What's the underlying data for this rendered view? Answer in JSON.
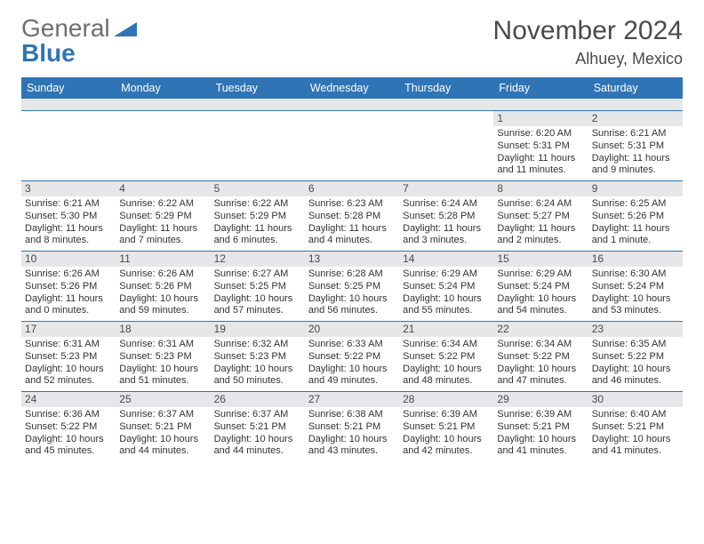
{
  "logo": {
    "word1": "General",
    "word2": "Blue",
    "accent": "#2f74b5"
  },
  "title": "November 2024",
  "location": "Alhuey, Mexico",
  "colors": {
    "header_bg": "#2f74b5",
    "header_text": "#ffffff",
    "daynum_bg": "#e6e7e9",
    "row_border": "#2f74b5",
    "text": "#333333",
    "title_color": "#4a4a4a"
  },
  "fonts": {
    "title_size": 30,
    "location_size": 18,
    "header_size": 12.5,
    "body_size": 11
  },
  "day_headers": [
    "Sunday",
    "Monday",
    "Tuesday",
    "Wednesday",
    "Thursday",
    "Friday",
    "Saturday"
  ],
  "weeks": [
    [
      {
        "n": "",
        "sr": "",
        "ss": "",
        "dl": [
          "",
          ""
        ]
      },
      {
        "n": "",
        "sr": "",
        "ss": "",
        "dl": [
          "",
          ""
        ]
      },
      {
        "n": "",
        "sr": "",
        "ss": "",
        "dl": [
          "",
          ""
        ]
      },
      {
        "n": "",
        "sr": "",
        "ss": "",
        "dl": [
          "",
          ""
        ]
      },
      {
        "n": "",
        "sr": "",
        "ss": "",
        "dl": [
          "",
          ""
        ]
      },
      {
        "n": "1",
        "sr": "Sunrise: 6:20 AM",
        "ss": "Sunset: 5:31 PM",
        "dl": [
          "Daylight: 11 hours",
          "and 11 minutes."
        ]
      },
      {
        "n": "2",
        "sr": "Sunrise: 6:21 AM",
        "ss": "Sunset: 5:31 PM",
        "dl": [
          "Daylight: 11 hours",
          "and 9 minutes."
        ]
      }
    ],
    [
      {
        "n": "3",
        "sr": "Sunrise: 6:21 AM",
        "ss": "Sunset: 5:30 PM",
        "dl": [
          "Daylight: 11 hours",
          "and 8 minutes."
        ]
      },
      {
        "n": "4",
        "sr": "Sunrise: 6:22 AM",
        "ss": "Sunset: 5:29 PM",
        "dl": [
          "Daylight: 11 hours",
          "and 7 minutes."
        ]
      },
      {
        "n": "5",
        "sr": "Sunrise: 6:22 AM",
        "ss": "Sunset: 5:29 PM",
        "dl": [
          "Daylight: 11 hours",
          "and 6 minutes."
        ]
      },
      {
        "n": "6",
        "sr": "Sunrise: 6:23 AM",
        "ss": "Sunset: 5:28 PM",
        "dl": [
          "Daylight: 11 hours",
          "and 4 minutes."
        ]
      },
      {
        "n": "7",
        "sr": "Sunrise: 6:24 AM",
        "ss": "Sunset: 5:28 PM",
        "dl": [
          "Daylight: 11 hours",
          "and 3 minutes."
        ]
      },
      {
        "n": "8",
        "sr": "Sunrise: 6:24 AM",
        "ss": "Sunset: 5:27 PM",
        "dl": [
          "Daylight: 11 hours",
          "and 2 minutes."
        ]
      },
      {
        "n": "9",
        "sr": "Sunrise: 6:25 AM",
        "ss": "Sunset: 5:26 PM",
        "dl": [
          "Daylight: 11 hours",
          "and 1 minute."
        ]
      }
    ],
    [
      {
        "n": "10",
        "sr": "Sunrise: 6:26 AM",
        "ss": "Sunset: 5:26 PM",
        "dl": [
          "Daylight: 11 hours",
          "and 0 minutes."
        ]
      },
      {
        "n": "11",
        "sr": "Sunrise: 6:26 AM",
        "ss": "Sunset: 5:26 PM",
        "dl": [
          "Daylight: 10 hours",
          "and 59 minutes."
        ]
      },
      {
        "n": "12",
        "sr": "Sunrise: 6:27 AM",
        "ss": "Sunset: 5:25 PM",
        "dl": [
          "Daylight: 10 hours",
          "and 57 minutes."
        ]
      },
      {
        "n": "13",
        "sr": "Sunrise: 6:28 AM",
        "ss": "Sunset: 5:25 PM",
        "dl": [
          "Daylight: 10 hours",
          "and 56 minutes."
        ]
      },
      {
        "n": "14",
        "sr": "Sunrise: 6:29 AM",
        "ss": "Sunset: 5:24 PM",
        "dl": [
          "Daylight: 10 hours",
          "and 55 minutes."
        ]
      },
      {
        "n": "15",
        "sr": "Sunrise: 6:29 AM",
        "ss": "Sunset: 5:24 PM",
        "dl": [
          "Daylight: 10 hours",
          "and 54 minutes."
        ]
      },
      {
        "n": "16",
        "sr": "Sunrise: 6:30 AM",
        "ss": "Sunset: 5:24 PM",
        "dl": [
          "Daylight: 10 hours",
          "and 53 minutes."
        ]
      }
    ],
    [
      {
        "n": "17",
        "sr": "Sunrise: 6:31 AM",
        "ss": "Sunset: 5:23 PM",
        "dl": [
          "Daylight: 10 hours",
          "and 52 minutes."
        ]
      },
      {
        "n": "18",
        "sr": "Sunrise: 6:31 AM",
        "ss": "Sunset: 5:23 PM",
        "dl": [
          "Daylight: 10 hours",
          "and 51 minutes."
        ]
      },
      {
        "n": "19",
        "sr": "Sunrise: 6:32 AM",
        "ss": "Sunset: 5:23 PM",
        "dl": [
          "Daylight: 10 hours",
          "and 50 minutes."
        ]
      },
      {
        "n": "20",
        "sr": "Sunrise: 6:33 AM",
        "ss": "Sunset: 5:22 PM",
        "dl": [
          "Daylight: 10 hours",
          "and 49 minutes."
        ]
      },
      {
        "n": "21",
        "sr": "Sunrise: 6:34 AM",
        "ss": "Sunset: 5:22 PM",
        "dl": [
          "Daylight: 10 hours",
          "and 48 minutes."
        ]
      },
      {
        "n": "22",
        "sr": "Sunrise: 6:34 AM",
        "ss": "Sunset: 5:22 PM",
        "dl": [
          "Daylight: 10 hours",
          "and 47 minutes."
        ]
      },
      {
        "n": "23",
        "sr": "Sunrise: 6:35 AM",
        "ss": "Sunset: 5:22 PM",
        "dl": [
          "Daylight: 10 hours",
          "and 46 minutes."
        ]
      }
    ],
    [
      {
        "n": "24",
        "sr": "Sunrise: 6:36 AM",
        "ss": "Sunset: 5:22 PM",
        "dl": [
          "Daylight: 10 hours",
          "and 45 minutes."
        ]
      },
      {
        "n": "25",
        "sr": "Sunrise: 6:37 AM",
        "ss": "Sunset: 5:21 PM",
        "dl": [
          "Daylight: 10 hours",
          "and 44 minutes."
        ]
      },
      {
        "n": "26",
        "sr": "Sunrise: 6:37 AM",
        "ss": "Sunset: 5:21 PM",
        "dl": [
          "Daylight: 10 hours",
          "and 44 minutes."
        ]
      },
      {
        "n": "27",
        "sr": "Sunrise: 6:38 AM",
        "ss": "Sunset: 5:21 PM",
        "dl": [
          "Daylight: 10 hours",
          "and 43 minutes."
        ]
      },
      {
        "n": "28",
        "sr": "Sunrise: 6:39 AM",
        "ss": "Sunset: 5:21 PM",
        "dl": [
          "Daylight: 10 hours",
          "and 42 minutes."
        ]
      },
      {
        "n": "29",
        "sr": "Sunrise: 6:39 AM",
        "ss": "Sunset: 5:21 PM",
        "dl": [
          "Daylight: 10 hours",
          "and 41 minutes."
        ]
      },
      {
        "n": "30",
        "sr": "Sunrise: 6:40 AM",
        "ss": "Sunset: 5:21 PM",
        "dl": [
          "Daylight: 10 hours",
          "and 41 minutes."
        ]
      }
    ]
  ]
}
